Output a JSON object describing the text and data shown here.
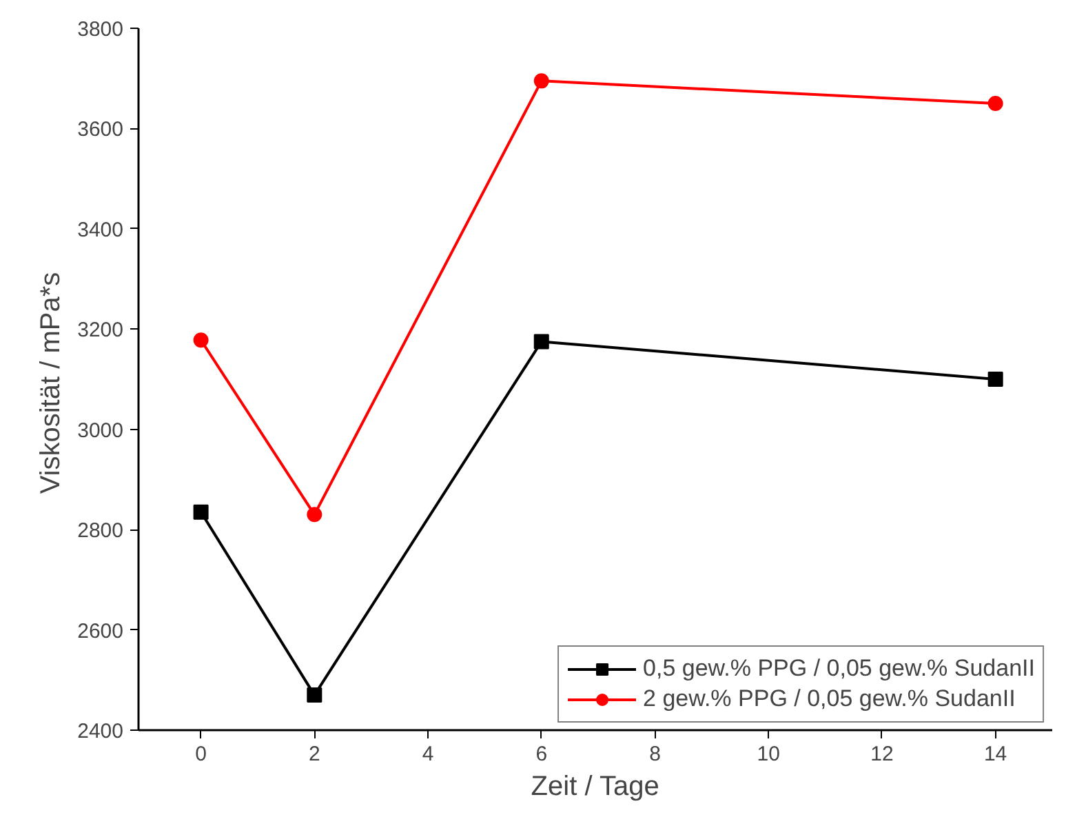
{
  "chart_data": {
    "type": "line",
    "xlabel": "Zeit / Tage",
    "ylabel": "Viskosität  / mPa*s",
    "x": [
      0,
      2,
      6,
      14
    ],
    "series": [
      {
        "name": "0,5 gew.% PPG / 0,05 gew.% SudanII",
        "color": "#000000",
        "marker": "square",
        "values": [
          2835,
          2470,
          3175,
          3100
        ]
      },
      {
        "name": "2 gew.% PPG / 0,05 gew.% SudanII",
        "color": "#ff0000",
        "marker": "circle",
        "values": [
          3178,
          2830,
          3695,
          3650
        ]
      }
    ],
    "xlim": [
      -1.1,
      15
    ],
    "xticks": [
      0,
      2,
      4,
      6,
      8,
      10,
      12,
      14
    ],
    "ylim": [
      2400,
      3800
    ],
    "yticks": [
      2400,
      2600,
      2800,
      3000,
      3200,
      3400,
      3600,
      3800
    ],
    "legend": "bottom right",
    "grid": false,
    "line_style": "solid"
  }
}
